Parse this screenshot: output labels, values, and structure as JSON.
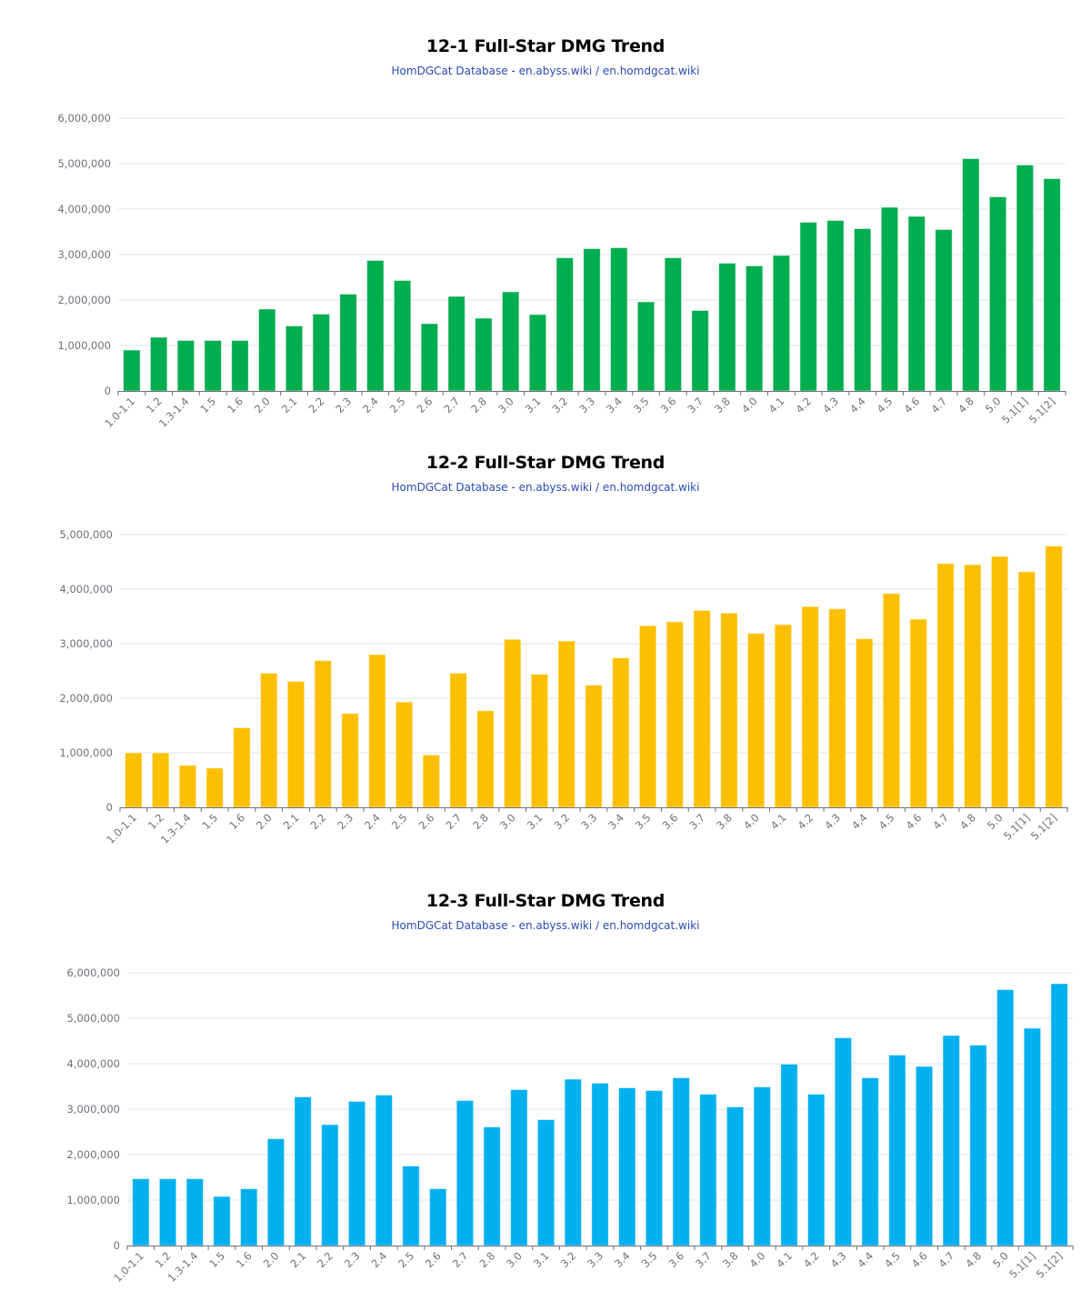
{
  "chart_data": [
    {
      "type": "bar",
      "title": "12-1 Full-Star DMG Trend",
      "subtitle": "HomDGCat Database - en.abyss.wiki / en.homdgcat.wiki",
      "xlabel": "",
      "ylabel": "",
      "ylim": [
        0,
        6000000
      ],
      "yticks": [
        0,
        1000000,
        2000000,
        3000000,
        4000000,
        5000000,
        6000000
      ],
      "ytick_labels": [
        "0",
        "1,000,000",
        "2,000,000",
        "3,000,000",
        "4,000,000",
        "5,000,000",
        "6,000,000"
      ],
      "grid": true,
      "color": "#00ad4f",
      "categories": [
        "1.0-1.1",
        "1.2",
        "1.3-1.4",
        "1.5",
        "1.6",
        "2.0",
        "2.1",
        "2.2",
        "2.3",
        "2.4",
        "2.5",
        "2.6",
        "2.7",
        "2.8",
        "3.0",
        "3.1",
        "3.2",
        "3.3",
        "3.4",
        "3.5",
        "3.6",
        "3.7",
        "3.8",
        "4.0",
        "4.1",
        "4.2",
        "4.3",
        "4.4",
        "4.5",
        "4.6",
        "4.7",
        "4.8",
        "5.0",
        "5.1[1]",
        "5.1[2]"
      ],
      "values": [
        900000,
        1180000,
        1110000,
        1110000,
        1110000,
        1800000,
        1430000,
        1690000,
        2130000,
        2870000,
        2430000,
        1480000,
        2080000,
        1600000,
        2180000,
        1680000,
        2930000,
        3130000,
        3150000,
        1960000,
        2930000,
        1770000,
        2810000,
        2750000,
        2980000,
        3710000,
        3750000,
        3570000,
        4040000,
        3840000,
        3550000,
        5110000,
        4270000,
        4970000,
        4670000
      ]
    },
    {
      "type": "bar",
      "title": "12-2 Full-Star DMG Trend",
      "subtitle": "HomDGCat Database - en.abyss.wiki / en.homdgcat.wiki",
      "xlabel": "",
      "ylabel": "",
      "ylim": [
        0,
        5000000
      ],
      "yticks": [
        0,
        1000000,
        2000000,
        3000000,
        4000000,
        5000000
      ],
      "ytick_labels": [
        "0",
        "1,000,000",
        "2,000,000",
        "3,000,000",
        "4,000,000",
        "5,000,000"
      ],
      "grid": true,
      "color": "#fcc000",
      "categories": [
        "1.0-1.1",
        "1.2",
        "1.3-1.4",
        "1.5",
        "1.6",
        "2.0",
        "2.1",
        "2.2",
        "2.3",
        "2.4",
        "2.5",
        "2.6",
        "2.7",
        "2.8",
        "3.0",
        "3.1",
        "3.2",
        "3.3",
        "3.4",
        "3.5",
        "3.6",
        "3.7",
        "3.8",
        "4.0",
        "4.1",
        "4.2",
        "4.3",
        "4.4",
        "4.5",
        "4.6",
        "4.7",
        "4.8",
        "5.0",
        "5.1[1]",
        "5.1[2]"
      ],
      "values": [
        1000000,
        1000000,
        770000,
        720000,
        1460000,
        2460000,
        2310000,
        2690000,
        1720000,
        2800000,
        1930000,
        960000,
        2460000,
        1770000,
        3080000,
        2440000,
        3050000,
        2240000,
        2740000,
        3330000,
        3400000,
        3610000,
        3560000,
        3190000,
        3350000,
        3680000,
        3640000,
        3090000,
        3920000,
        3450000,
        4470000,
        4450000,
        4600000,
        4320000,
        4790000
      ]
    },
    {
      "type": "bar",
      "title": "12-3 Full-Star DMG Trend",
      "subtitle": "HomDGCat Database - en.abyss.wiki / en.homdgcat.wiki",
      "xlabel": "",
      "ylabel": "",
      "ylim": [
        0,
        6000000
      ],
      "yticks": [
        0,
        1000000,
        2000000,
        3000000,
        4000000,
        5000000,
        6000000
      ],
      "ytick_labels": [
        "0",
        "1,000,000",
        "2,000,000",
        "3,000,000",
        "4,000,000",
        "5,000,000",
        "6,000,000"
      ],
      "grid": true,
      "color": "#00b0ef",
      "categories": [
        "1.0-1.1",
        "1.2",
        "1.3-1.4",
        "1.5",
        "1.6",
        "2.0",
        "2.1",
        "2.2",
        "2.3",
        "2.4",
        "2.5",
        "2.6",
        "2.7",
        "2.8",
        "3.0",
        "3.1",
        "3.2",
        "3.3",
        "3.4",
        "3.5",
        "3.6",
        "3.7",
        "3.8",
        "4.0",
        "4.1",
        "4.2",
        "4.3",
        "4.4",
        "4.5",
        "4.6",
        "4.7",
        "4.8",
        "5.0",
        "5.1[1]",
        "5.1[2]"
      ],
      "values": [
        1470000,
        1470000,
        1470000,
        1080000,
        1250000,
        2350000,
        3270000,
        2660000,
        3170000,
        3310000,
        1750000,
        1250000,
        3190000,
        2610000,
        3430000,
        2770000,
        3660000,
        3570000,
        3470000,
        3410000,
        3690000,
        3330000,
        3050000,
        3490000,
        3990000,
        3330000,
        4570000,
        3690000,
        4190000,
        3940000,
        4620000,
        4410000,
        5630000,
        4780000,
        5760000
      ]
    }
  ]
}
